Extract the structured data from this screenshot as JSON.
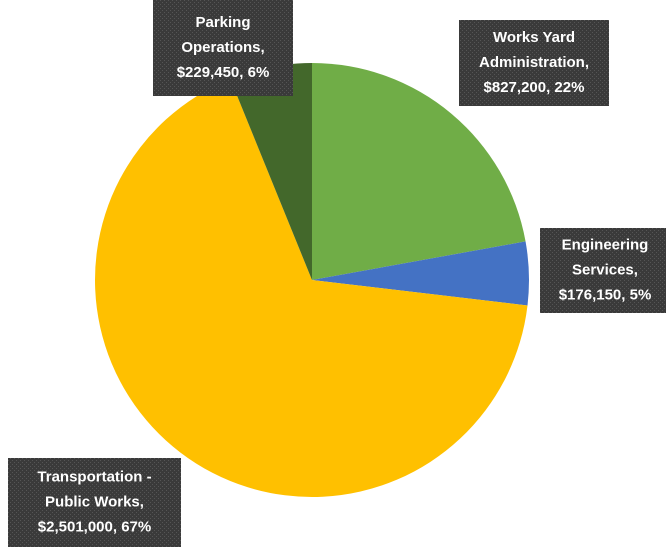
{
  "chart_data": {
    "type": "pie",
    "values": [
      827200,
      176150,
      2501000,
      229450
    ],
    "value_labels": [
      [
        "Works Yard",
        "Administration,",
        "$827,200, 22%"
      ],
      [
        "Engineering",
        "Services,",
        "$176,150, 5%"
      ],
      [
        "Transportation -",
        "Public Works,",
        "$2,501,000, 67%"
      ],
      [
        "Parking",
        "Operations,",
        "$229,450, 6%"
      ]
    ],
    "colors": [
      "#70ad47",
      "#4472c4",
      "#ffc000",
      "#43682b"
    ]
  }
}
